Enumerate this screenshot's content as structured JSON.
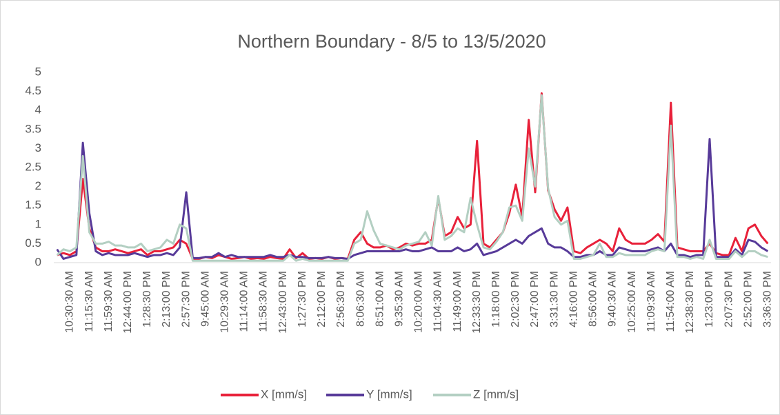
{
  "chart_data": {
    "type": "line",
    "title": "Northern Boundary - 8/5 to 13/5/2020",
    "categories": [
      null,
      null,
      "10:30:30 AM",
      null,
      null,
      "11:15:30 AM",
      null,
      null,
      "11:59:30 AM",
      null,
      null,
      "12:44:00 PM",
      null,
      null,
      "1:28:30 PM",
      null,
      null,
      "2:13:00 PM",
      null,
      null,
      "2:57:30 PM",
      null,
      null,
      "9:45:00 AM",
      null,
      null,
      "10:29:30 AM",
      null,
      null,
      "11:14:00 AM",
      null,
      null,
      "11:58:30 AM",
      null,
      null,
      "12:43:00 PM",
      null,
      null,
      "1:27:30 PM",
      null,
      null,
      "2:12:00 PM",
      null,
      null,
      "2:56:30 PM",
      null,
      null,
      "8:06:30 AM",
      null,
      null,
      "8:51:00 AM",
      null,
      null,
      "9:35:30 AM",
      null,
      null,
      "10:20:00 AM",
      null,
      null,
      "11:04:30 AM",
      null,
      null,
      "11:49:00 AM",
      null,
      null,
      "12:33:30 PM",
      null,
      null,
      "1:18:00 PM",
      null,
      null,
      "2:02:30 PM",
      null,
      null,
      "2:47:00 PM",
      null,
      null,
      "3:31:30 PM",
      null,
      null,
      "4:16:00 PM",
      null,
      null,
      "8:56:00 AM",
      null,
      null,
      "9:40:30 AM",
      null,
      null,
      "10:25:00 AM",
      null,
      null,
      "11:09:30 AM",
      null,
      null,
      "11:54:00 AM",
      null,
      null,
      "12:38:30 PM",
      null,
      null,
      "1:23:00 PM",
      null,
      null,
      "2:07:30 PM",
      null,
      null,
      "2:52:00 PM",
      null,
      null,
      "3:36:30 PM"
    ],
    "series": [
      {
        "name": "X [mm/s]",
        "color": "#e8213a",
        "values": [
          0.2,
          0.25,
          0.2,
          0.3,
          2.2,
          0.9,
          0.4,
          0.3,
          0.3,
          0.35,
          0.3,
          0.25,
          0.3,
          0.35,
          0.2,
          0.3,
          0.3,
          0.35,
          0.4,
          0.6,
          0.5,
          0.1,
          0.1,
          0.15,
          0.12,
          0.2,
          0.15,
          0.1,
          0.12,
          0.15,
          0.1,
          0.12,
          0.1,
          0.15,
          0.12,
          0.1,
          0.35,
          0.12,
          0.25,
          0.1,
          0.12,
          0.1,
          0.15,
          0.1,
          0.12,
          0.1,
          0.6,
          0.8,
          0.5,
          0.4,
          0.4,
          0.45,
          0.35,
          0.4,
          0.5,
          0.45,
          0.5,
          0.5,
          0.6,
          1.7,
          0.7,
          0.8,
          1.2,
          0.9,
          1.0,
          3.2,
          0.5,
          0.4,
          0.6,
          0.8,
          1.3,
          2.05,
          1.2,
          3.75,
          1.85,
          4.45,
          1.9,
          1.4,
          1.1,
          1.45,
          0.3,
          0.25,
          0.4,
          0.5,
          0.6,
          0.5,
          0.3,
          0.9,
          0.6,
          0.5,
          0.5,
          0.5,
          0.6,
          0.75,
          0.55,
          4.2,
          0.4,
          0.35,
          0.3,
          0.3,
          0.3,
          0.5,
          0.25,
          0.2,
          0.2,
          0.65,
          0.3,
          0.9,
          1.0,
          0.7,
          0.5
        ]
      },
      {
        "name": "Y [mm/s]",
        "color": "#573a99",
        "values": [
          0.35,
          0.1,
          0.15,
          0.2,
          3.15,
          1.3,
          0.3,
          0.2,
          0.25,
          0.2,
          0.2,
          0.2,
          0.25,
          0.2,
          0.15,
          0.2,
          0.2,
          0.25,
          0.2,
          0.4,
          1.85,
          0.12,
          0.12,
          0.15,
          0.15,
          0.25,
          0.15,
          0.2,
          0.15,
          0.15,
          0.15,
          0.15,
          0.15,
          0.2,
          0.15,
          0.15,
          0.2,
          0.15,
          0.15,
          0.12,
          0.12,
          0.12,
          0.15,
          0.12,
          0.12,
          0.1,
          0.2,
          0.25,
          0.3,
          0.3,
          0.3,
          0.3,
          0.3,
          0.3,
          0.35,
          0.3,
          0.3,
          0.35,
          0.4,
          0.3,
          0.3,
          0.3,
          0.4,
          0.3,
          0.35,
          0.5,
          0.2,
          0.25,
          0.3,
          0.4,
          0.5,
          0.6,
          0.5,
          0.7,
          0.8,
          0.9,
          0.5,
          0.4,
          0.4,
          0.3,
          0.15,
          0.15,
          0.2,
          0.2,
          0.3,
          0.2,
          0.2,
          0.4,
          0.35,
          0.3,
          0.3,
          0.3,
          0.35,
          0.4,
          0.3,
          0.5,
          0.2,
          0.2,
          0.15,
          0.2,
          0.2,
          3.25,
          0.15,
          0.15,
          0.15,
          0.35,
          0.2,
          0.6,
          0.55,
          0.4,
          0.3
        ]
      },
      {
        "name": "Z [mm/s]",
        "color": "#b3cfc2",
        "values": [
          0.2,
          0.35,
          0.3,
          0.4,
          2.8,
          0.8,
          0.5,
          0.5,
          0.55,
          0.45,
          0.45,
          0.4,
          0.4,
          0.5,
          0.3,
          0.35,
          0.4,
          0.6,
          0.5,
          1.0,
          0.9,
          0.05,
          0.05,
          0.05,
          0.05,
          0.05,
          0.05,
          0.05,
          0.05,
          0.05,
          0.05,
          0.05,
          0.05,
          0.05,
          0.05,
          0.05,
          0.2,
          0.05,
          0.1,
          0.05,
          0.05,
          0.05,
          0.05,
          0.05,
          0.05,
          0.05,
          0.5,
          0.6,
          1.35,
          0.85,
          0.5,
          0.45,
          0.4,
          0.35,
          0.45,
          0.5,
          0.55,
          0.8,
          0.45,
          1.75,
          0.6,
          0.7,
          0.9,
          0.8,
          1.7,
          1.0,
          0.4,
          0.35,
          0.55,
          0.8,
          1.45,
          1.5,
          1.1,
          3.0,
          2.0,
          4.4,
          1.95,
          1.2,
          1.0,
          1.1,
          0.1,
          0.1,
          0.15,
          0.2,
          0.5,
          0.15,
          0.15,
          0.25,
          0.2,
          0.2,
          0.2,
          0.2,
          0.3,
          0.35,
          0.3,
          3.6,
          0.15,
          0.15,
          0.1,
          0.15,
          0.1,
          0.6,
          0.1,
          0.1,
          0.1,
          0.3,
          0.15,
          0.3,
          0.3,
          0.2,
          0.15
        ]
      }
    ],
    "ylim": [
      0,
      5
    ],
    "yticks": [
      0,
      0.5,
      1,
      1.5,
      2,
      2.5,
      3,
      3.5,
      4,
      4.5,
      5
    ],
    "grid": false,
    "legend": "bottom"
  }
}
